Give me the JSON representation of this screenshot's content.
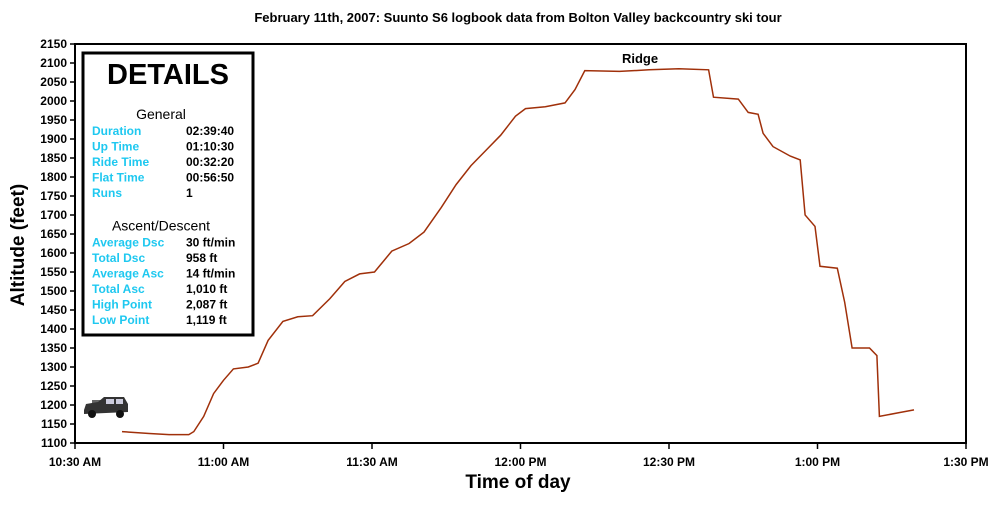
{
  "chart_data": {
    "type": "line",
    "title": "February 11th, 2007: Suunto S6 logbook data from Bolton Valley backcountry ski tour",
    "x_label": "Time of day",
    "y_label": "Altitude (feet)",
    "annotation": "Ridge",
    "x": [
      639.5,
      645,
      649,
      653,
      654,
      656,
      658,
      660,
      662,
      665,
      667,
      669,
      672,
      675,
      678,
      681.5,
      684.5,
      687.5,
      690.5,
      694,
      697.5,
      700.5,
      704,
      707,
      710,
      713,
      716,
      719,
      721,
      725,
      729,
      731,
      733,
      740,
      746,
      752,
      758,
      759,
      764,
      766,
      768,
      769,
      771,
      774.5,
      776.5,
      777.5,
      779.5,
      780.5,
      784,
      785.5,
      787,
      790.5,
      792,
      792.5,
      796.5,
      799.5
    ],
    "series": [
      {
        "name": "Altitude",
        "color": "#a0300a",
        "values": [
          1130,
          1125,
          1122,
          1122,
          1130,
          1170,
          1230,
          1265,
          1295,
          1300,
          1310,
          1370,
          1420,
          1432,
          1435,
          1480,
          1525,
          1545,
          1550,
          1605,
          1625,
          1655,
          1720,
          1780,
          1830,
          1870,
          1910,
          1960,
          1980,
          1985,
          1995,
          2030,
          2080,
          2078,
          2082,
          2085,
          2082,
          2010,
          2005,
          1970,
          1965,
          1915,
          1880,
          1855,
          1845,
          1700,
          1670,
          1565,
          1560,
          1470,
          1350,
          1350,
          1330,
          1170,
          1180,
          1187
        ]
      }
    ],
    "xlim": [
      630,
      810
    ],
    "xticks": [
      {
        "value": 630,
        "label": "10:30 AM"
      },
      {
        "value": 660,
        "label": "11:00 AM"
      },
      {
        "value": 690,
        "label": "11:30 AM"
      },
      {
        "value": 720,
        "label": "12:00 PM"
      },
      {
        "value": 750,
        "label": "12:30 PM"
      },
      {
        "value": 780,
        "label": "1:00 PM"
      },
      {
        "value": 810,
        "label": "1:30 PM"
      }
    ],
    "ylim": [
      1100,
      2150
    ],
    "yticks": [
      1100,
      1150,
      1200,
      1250,
      1300,
      1350,
      1400,
      1450,
      1500,
      1550,
      1600,
      1650,
      1700,
      1750,
      1800,
      1850,
      1900,
      1950,
      2000,
      2050,
      2100,
      2150
    ],
    "grid": false
  },
  "details": {
    "title": "DETAILS",
    "sections": [
      {
        "heading": "General",
        "rows": [
          [
            "Duration",
            "02:39:40"
          ],
          [
            "Up Time",
            "01:10:30"
          ],
          [
            "Ride Time",
            "00:32:20"
          ],
          [
            "Flat Time",
            "00:56:50"
          ],
          [
            "Runs",
            "1"
          ]
        ]
      },
      {
        "heading": "Ascent/Descent",
        "rows": [
          [
            "Average Dsc",
            "30 ft/min"
          ],
          [
            "Total Dsc",
            "958 ft"
          ],
          [
            "Average Asc",
            "14 ft/min"
          ],
          [
            "Total Asc",
            "1,010 ft"
          ],
          [
            "High Point",
            "2,087 ft"
          ],
          [
            "Low Point",
            "1,119 ft"
          ]
        ]
      }
    ]
  }
}
